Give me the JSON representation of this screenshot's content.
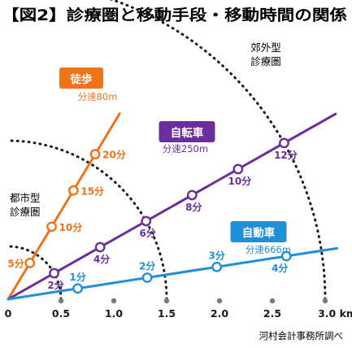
{
  "chart_data": {
    "type": "line",
    "title": "【図2】診療圏と移動手段・移動時間の関係",
    "source": "河村会計事務所調べ",
    "x_unit": "km",
    "x_ticks": [
      "0",
      "0.5",
      "1.0",
      "1.5",
      "2.0",
      "2.5",
      "3.0"
    ],
    "xlim": [
      0,
      3.0
    ],
    "zones": [
      {
        "name": "都市型診療圏",
        "line1": "都市型",
        "line2": "診療圏",
        "radius_km": 0.5
      },
      {
        "name": "郊外型診療圏",
        "line1": "郊外型",
        "line2": "診療圏",
        "radius_km": 3.0
      }
    ],
    "mid_arc_km": 1.5,
    "series": [
      {
        "name": "徒歩",
        "speed_label": "分速80m",
        "speed_m_per_min": 80,
        "color": "#f07318",
        "points": [
          {
            "minutes": 5,
            "label": "5分"
          },
          {
            "minutes": 10,
            "label": "10分"
          },
          {
            "minutes": 15,
            "label": "15分"
          },
          {
            "minutes": 20,
            "label": "20分"
          }
        ]
      },
      {
        "name": "自転車",
        "speed_label": "分速250m",
        "speed_m_per_min": 250,
        "color": "#6a2f9c",
        "points": [
          {
            "minutes": 2,
            "label": "2分"
          },
          {
            "minutes": 4,
            "label": "4分"
          },
          {
            "minutes": 6,
            "label": "6分"
          },
          {
            "minutes": 8,
            "label": "8分"
          },
          {
            "minutes": 10,
            "label": "10分"
          },
          {
            "minutes": 12,
            "label": "12分"
          }
        ]
      },
      {
        "name": "自動車",
        "speed_label": "分速666m",
        "speed_m_per_min": 666,
        "color": "#1e8fd8",
        "points": [
          {
            "minutes": 1,
            "label": "1分"
          },
          {
            "minutes": 2,
            "label": "2分"
          },
          {
            "minutes": 3,
            "label": "3分"
          },
          {
            "minutes": 4,
            "label": "4分"
          }
        ]
      }
    ]
  }
}
